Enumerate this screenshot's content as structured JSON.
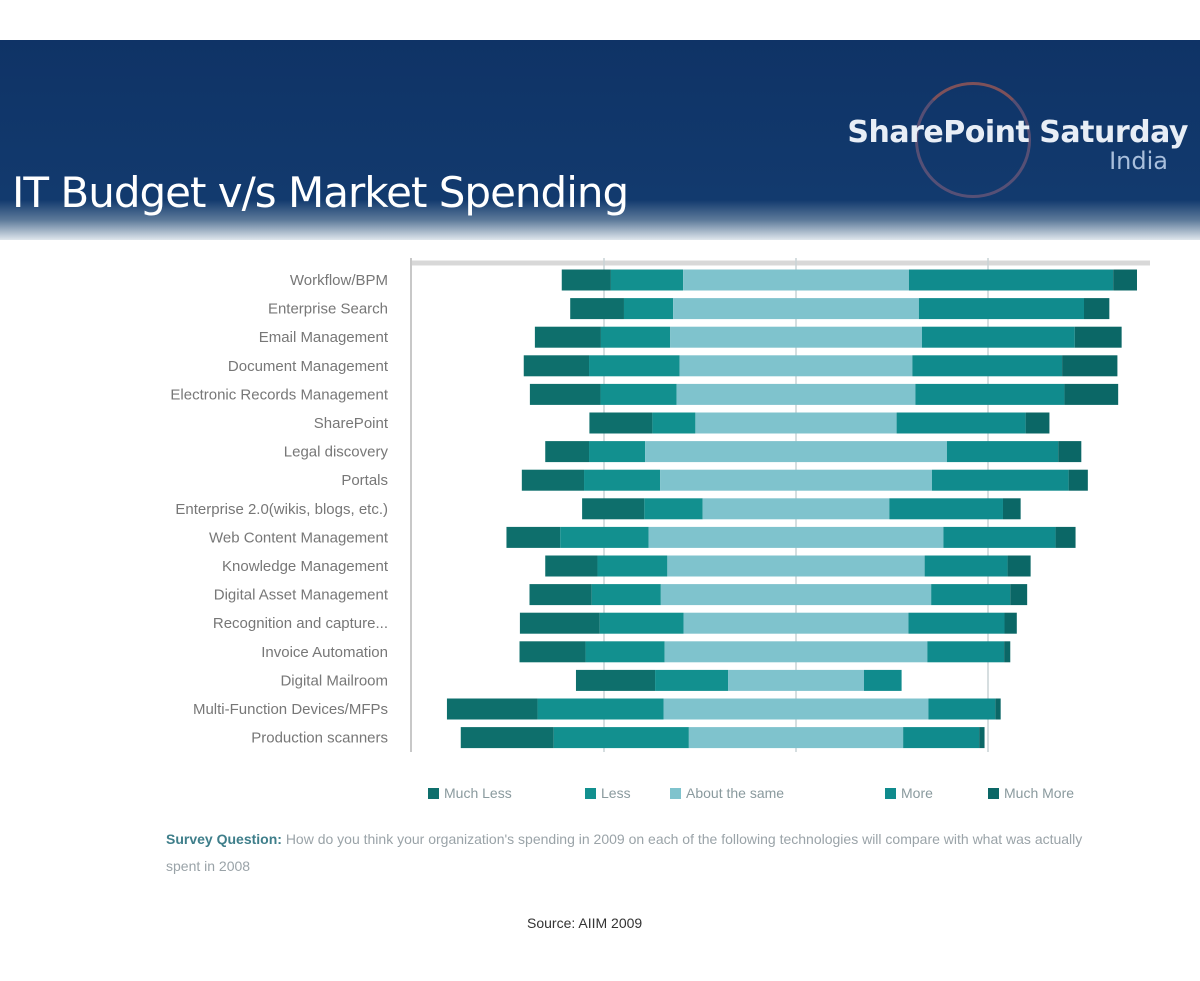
{
  "header": {
    "title": "IT Budget v/s Market Spending",
    "logo_line1": "SharePoint Saturday",
    "logo_line2": "India"
  },
  "chart_data": {
    "type": "bar",
    "orientation": "horizontal-diverging-stacked",
    "unit": "percent of respondents (estimated)",
    "xlim": [
      -50,
      50
    ],
    "grid": true,
    "legend_position": "bottom",
    "categories": [
      "Workflow/BPM",
      "Enterprise Search",
      "Email Management",
      "Document Management",
      "Electronic Records Management",
      "SharePoint",
      "Legal discovery",
      "Portals",
      "Enterprise 2.0(wikis, blogs, etc.)",
      "Web Content Management",
      "Knowledge Management",
      "Digital Asset Management",
      "Recognition and capture...",
      "Invoice Automation",
      "Digital Mailroom",
      "Multi-Function Devices/MFPs",
      "Production scanners"
    ],
    "series": [
      {
        "name": "Much Less",
        "color": "#0e6f6c",
        "values": [
          6.4,
          7.0,
          8.6,
          8.5,
          9.2,
          8.2,
          5.7,
          8.1,
          8.1,
          7.0,
          6.8,
          8.1,
          10.4,
          8.6,
          10.3,
          11.8,
          12.1
        ]
      },
      {
        "name": "Less",
        "color": "#12908f",
        "values": [
          9.4,
          6.4,
          9.0,
          11.8,
          9.9,
          5.6,
          7.3,
          9.9,
          7.6,
          11.5,
          9.1,
          9.0,
          10.9,
          10.3,
          9.5,
          16.4,
          17.6
        ]
      },
      {
        "name": "About the same",
        "color": "#7fc3cd",
        "values": [
          29.4,
          32.0,
          32.8,
          30.3,
          31.1,
          26.2,
          39.3,
          35.4,
          24.3,
          38.4,
          33.5,
          35.2,
          29.3,
          34.2,
          17.7,
          34.5,
          27.9
        ]
      },
      {
        "name": "More",
        "color": "#108b8d",
        "values": [
          26.6,
          21.5,
          19.9,
          19.5,
          19.4,
          16.8,
          14.5,
          17.8,
          14.8,
          14.6,
          10.8,
          10.3,
          12.5,
          10.0,
          4.9,
          8.7,
          9.9
        ]
      },
      {
        "name": "Much More",
        "color": "#0b6766",
        "values": [
          3.1,
          3.3,
          6.1,
          7.2,
          7.0,
          3.1,
          3.0,
          2.5,
          2.3,
          2.6,
          3.0,
          2.2,
          1.6,
          0.8,
          0,
          0.7,
          0.7
        ]
      }
    ]
  },
  "survey": {
    "label": "Survey Question:",
    "text": "How do you think your organization's spending in 2009 on each of the following technologies will compare with what was actually spent in 2008"
  },
  "source": "Source: AIIM 2009"
}
